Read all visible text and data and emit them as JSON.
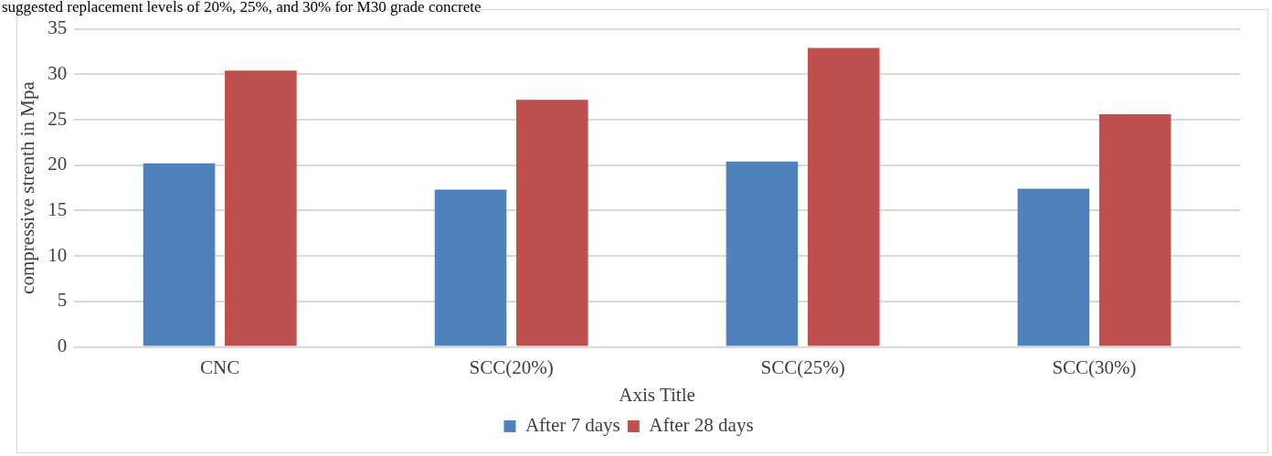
{
  "chart_data": {
    "type": "bar",
    "categories": [
      "CNC",
      "SCC(20%)",
      "SCC(25%)",
      "SCC(30%)"
    ],
    "series": [
      {
        "name": "After 7 days",
        "color": "#4f81bd",
        "values": [
          20.2,
          17.3,
          20.4,
          17.4
        ]
      },
      {
        "name": "After 28 days",
        "color": "#c0504d",
        "values": [
          30.4,
          27.2,
          32.9,
          25.6
        ]
      }
    ],
    "xlabel": "Axis Title",
    "ylabel": "compressive strenth in Mpa",
    "ylim": [
      0,
      35
    ],
    "yticks": [
      0,
      5,
      10,
      15,
      20,
      25,
      30,
      35
    ],
    "grid": "y",
    "legend": "bottom",
    "annotations": [
      "suggested replacement levels of 20%, 25%, and 30% for M30 grade concrete"
    ]
  }
}
